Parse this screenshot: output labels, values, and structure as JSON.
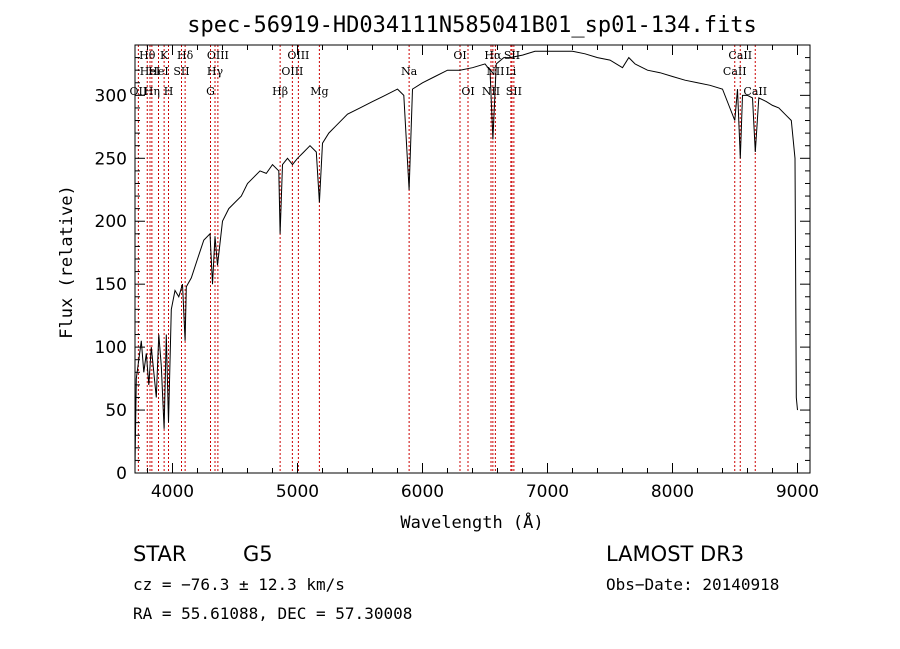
{
  "chart_data": {
    "type": "line",
    "title": "spec-56919-HD034111N585041B01_sp01-134.fits",
    "xlabel": "Wavelength (Å)",
    "ylabel": "Flux (relative)",
    "xlim": [
      3700,
      9100
    ],
    "ylim": [
      0,
      340
    ],
    "xticks": [
      4000,
      5000,
      6000,
      7000,
      8000,
      9000
    ],
    "yticks": [
      0,
      50,
      100,
      150,
      200,
      250,
      300
    ],
    "xtick_labels": [
      "4000",
      "5000",
      "6000",
      "7000",
      "8000",
      "9000"
    ],
    "ytick_labels": [
      "0",
      "50",
      "100",
      "150",
      "200",
      "250",
      "300"
    ],
    "grid": false,
    "line_color": "#000000",
    "marker_color": "#cc0000",
    "series": [
      {
        "name": "spectrum",
        "x": [
          3700,
          3710,
          3730,
          3750,
          3770,
          3790,
          3810,
          3830,
          3850,
          3870,
          3890,
          3910,
          3933,
          3950,
          3968,
          3990,
          4020,
          4050,
          4080,
          4101,
          4110,
          4150,
          4200,
          4250,
          4300,
          4320,
          4340,
          4360,
          4400,
          4450,
          4500,
          4550,
          4600,
          4650,
          4700,
          4750,
          4800,
          4850,
          4861,
          4880,
          4920,
          4960,
          5000,
          5050,
          5100,
          5150,
          5175,
          5200,
          5250,
          5300,
          5400,
          5500,
          5600,
          5700,
          5800,
          5850,
          5893,
          5920,
          6000,
          6100,
          6200,
          6300,
          6400,
          6500,
          6540,
          6563,
          6590,
          6650,
          6700,
          6800,
          6900,
          7000,
          7100,
          7200,
          7300,
          7400,
          7500,
          7600,
          7650,
          7700,
          7800,
          7900,
          8000,
          8100,
          8200,
          8300,
          8400,
          8498,
          8520,
          8542,
          8560,
          8600,
          8640,
          8662,
          8690,
          8750,
          8800,
          8850,
          8900,
          8950,
          8980,
          8990,
          9000
        ],
        "y": [
          5,
          75,
          90,
          105,
          80,
          95,
          70,
          100,
          80,
          60,
          110,
          85,
          35,
          110,
          40,
          130,
          145,
          140,
          150,
          105,
          148,
          155,
          170,
          185,
          190,
          150,
          188,
          165,
          200,
          210,
          215,
          220,
          230,
          235,
          240,
          238,
          245,
          240,
          190,
          245,
          250,
          245,
          250,
          255,
          260,
          255,
          215,
          262,
          270,
          275,
          285,
          290,
          295,
          300,
          305,
          300,
          225,
          305,
          310,
          315,
          320,
          320,
          322,
          325,
          320,
          265,
          325,
          330,
          330,
          332,
          335,
          335,
          335,
          335,
          333,
          330,
          328,
          322,
          330,
          325,
          320,
          318,
          315,
          312,
          310,
          308,
          305,
          280,
          305,
          250,
          300,
          300,
          298,
          255,
          298,
          295,
          292,
          290,
          285,
          280,
          250,
          60,
          50
        ]
      }
    ],
    "lines": [
      {
        "w": 3727,
        "label": "OII",
        "row": 3
      },
      {
        "w": 3798,
        "label": "Hθ",
        "row": 1
      },
      {
        "w": 3820,
        "label": "HeI",
        "row": 2
      },
      {
        "w": 3835,
        "label": "Hη",
        "row": 3
      },
      {
        "w": 3888,
        "label": "HeI",
        "row": 2
      },
      {
        "w": 3933,
        "label": "K",
        "row": 1
      },
      {
        "w": 3968,
        "label": "H",
        "row": 3
      },
      {
        "w": 4072,
        "label": "SII",
        "row": 2
      },
      {
        "w": 4101,
        "label": "Hδ",
        "row": 1
      },
      {
        "w": 4304,
        "label": "G",
        "row": 3
      },
      {
        "w": 4340,
        "label": "Hγ",
        "row": 2
      },
      {
        "w": 4363,
        "label": "OIII",
        "row": 1
      },
      {
        "w": 4861,
        "label": "Hβ",
        "row": 3
      },
      {
        "w": 4959,
        "label": "OIII",
        "row": 2
      },
      {
        "w": 5007,
        "label": "OIII",
        "row": 1
      },
      {
        "w": 5175,
        "label": "Mg",
        "row": 3
      },
      {
        "w": 5893,
        "label": "Na",
        "row": 2
      },
      {
        "w": 6300,
        "label": "OI",
        "row": 1
      },
      {
        "w": 6364,
        "label": "OI",
        "row": 3
      },
      {
        "w": 6548,
        "label": "NII",
        "row": 3
      },
      {
        "w": 6563,
        "label": "Hα",
        "row": 1
      },
      {
        "w": 6583,
        "label": "NII",
        "row": 2
      },
      {
        "w": 6707,
        "label": "Li",
        "row": 2
      },
      {
        "w": 6716,
        "label": "SII",
        "row": 1
      },
      {
        "w": 6731,
        "label": "SII",
        "row": 3
      },
      {
        "w": 8498,
        "label": "CaII",
        "row": 2
      },
      {
        "w": 8542,
        "label": "CaII",
        "row": 1
      },
      {
        "w": 8662,
        "label": "CaII",
        "row": 3
      }
    ]
  },
  "info": {
    "object_class": "STAR",
    "subclass": "G5",
    "survey": "LAMOST DR3",
    "redshift": "cz = −76.3 ± 12.3 km/s",
    "obs_date": "Obs−Date: 20140918",
    "coords": "RA =  55.61088, DEC =  57.30008"
  }
}
